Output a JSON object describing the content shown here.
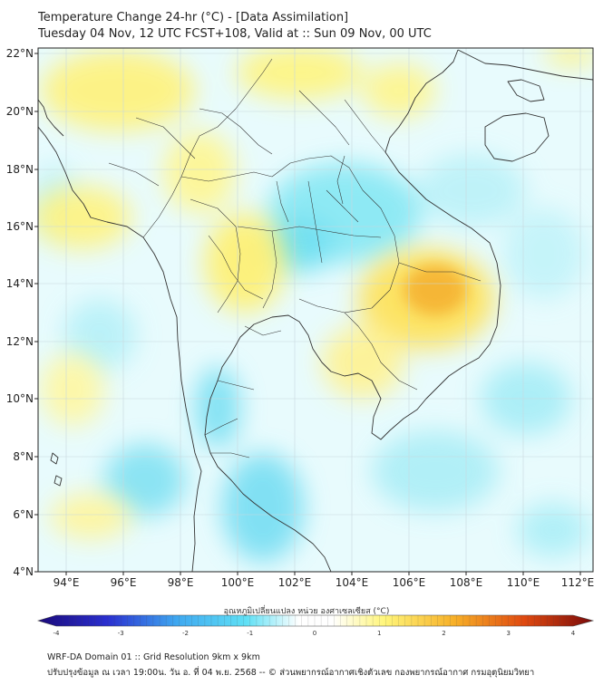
{
  "title_line1": "Temperature Change 24-hr (°C) - [Data Assimilation]",
  "title_line2": "Tuesday 04 Nov, 12 UTC FCST+108, Valid at :: Sun 09 Nov, 00 UTC",
  "lat_labels": [
    "22°N",
    "20°N",
    "18°N",
    "16°N",
    "14°N",
    "12°N",
    "10°N",
    "8°N",
    "6°N",
    "4°N"
  ],
  "lon_labels": [
    "94°E",
    "96°E",
    "98°E",
    "100°E",
    "102°E",
    "104°E",
    "106°E",
    "108°E",
    "110°E",
    "112°E"
  ],
  "colorbar": {
    "title": "อุณหภูมิเปลี่ยนแปลง หน่วย องศาเซลเซียส (°C)",
    "ticks": [
      "-4",
      "-3",
      "-2",
      "-1",
      "0",
      "1",
      "2",
      "3",
      "4"
    ],
    "min": -4,
    "max": 4,
    "colors": {
      "neg4": "#1b0a7a",
      "neg3": "#2a2fd0",
      "neg2": "#3fa8f0",
      "neg1": "#5fe0f5",
      "zero": "#ffffff",
      "pos1": "#fff57a",
      "pos2": "#f7b028",
      "pos3": "#e04a10",
      "pos4": "#7a0a0a"
    }
  },
  "footer_line1": "WRF-DA Domain 01 :: Grid Resolution 9km x 9km",
  "footer_line2": "ปรับปรุงข้อมูล ณ เวลา 19:00น. วัน อ. ที่ 04 พ.ย. 2568 -- © ส่วนพยากรณ์อากาศเชิงตัวเลข กองพยากรณ์อากาศ กรมอุตุนิยมวิทยา"
}
